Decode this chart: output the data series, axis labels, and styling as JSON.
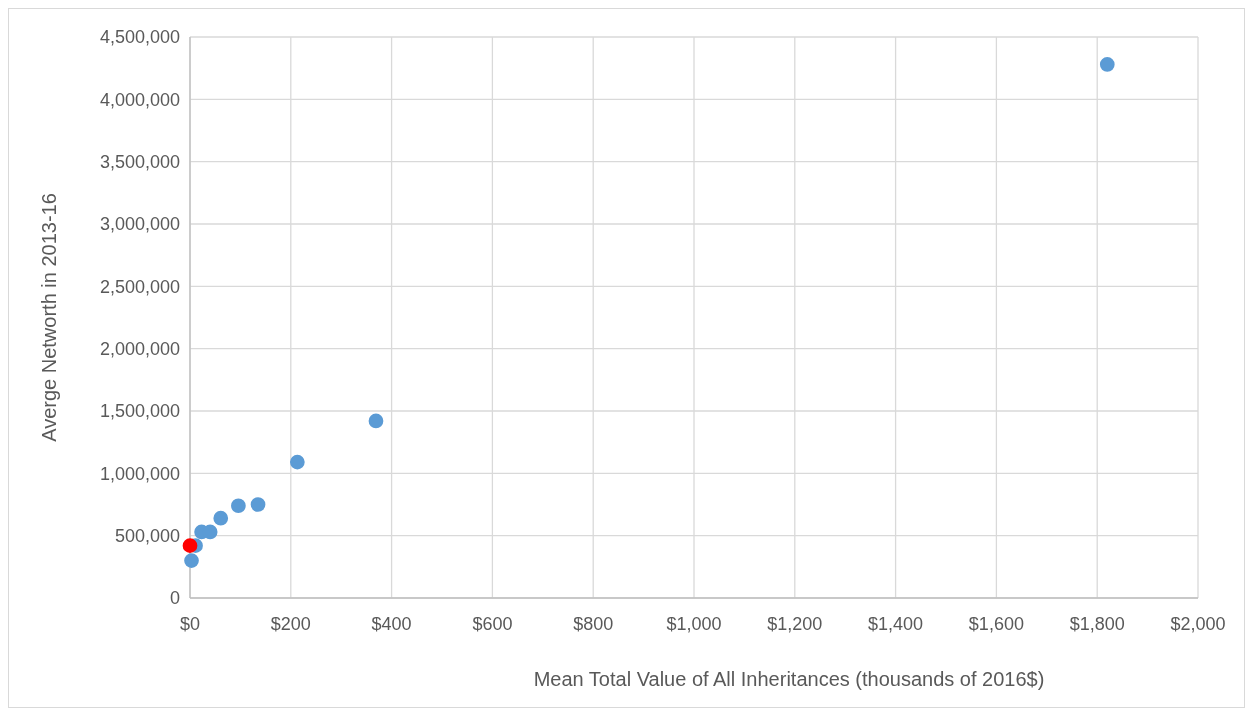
{
  "chart_data": {
    "type": "scatter",
    "xlabel": "Mean Total Value  of All Inheritances (thousands of 2016$)",
    "ylabel": "Averge Networth in 2013-16",
    "series": [
      {
        "color": "#ff0000",
        "x": [
          0
        ],
        "values": [
          420000
        ]
      },
      {
        "color": "#5b9bd5",
        "x": [
          3,
          11,
          23,
          40,
          61,
          96,
          135,
          213,
          369,
          1820
        ],
        "values": [
          300000,
          420000,
          530000,
          530000,
          640000,
          740000,
          750000,
          1090000,
          1420000,
          4280000
        ]
      }
    ],
    "xlim": [
      0,
      2000
    ],
    "xticks": [
      {
        "value": 0,
        "label": "$0"
      },
      {
        "value": 200,
        "label": "$200"
      },
      {
        "value": 400,
        "label": "$400"
      },
      {
        "value": 600,
        "label": "$600"
      },
      {
        "value": 800,
        "label": "$800"
      },
      {
        "value": 1000,
        "label": "$1,000"
      },
      {
        "value": 1200,
        "label": "$1,200"
      },
      {
        "value": 1400,
        "label": "$1,400"
      },
      {
        "value": 1600,
        "label": "$1,600"
      },
      {
        "value": 1800,
        "label": "$1,800"
      },
      {
        "value": 2000,
        "label": "$2,000"
      }
    ],
    "ylim": [
      0,
      4500000
    ],
    "yticks": [
      {
        "value": 0,
        "label": "0"
      },
      {
        "value": 500000,
        "label": "500,000"
      },
      {
        "value": 1000000,
        "label": "1,000,000"
      },
      {
        "value": 1500000,
        "label": "1,500,000"
      },
      {
        "value": 2000000,
        "label": "2,000,000"
      },
      {
        "value": 2500000,
        "label": "2,500,000"
      },
      {
        "value": 3000000,
        "label": "3,000,000"
      },
      {
        "value": 3500000,
        "label": "3,500,000"
      },
      {
        "value": 4000000,
        "label": "4,000,000"
      },
      {
        "value": 4500000,
        "label": "4,500,000"
      }
    ],
    "grid": true,
    "marker": "circle"
  }
}
